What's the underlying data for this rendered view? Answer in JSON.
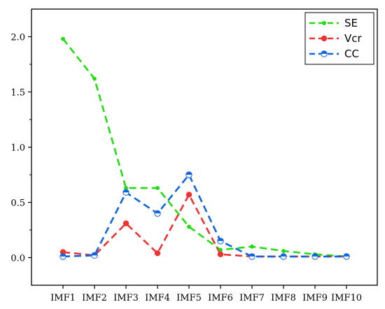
{
  "chart_data": {
    "type": "line",
    "categories": [
      "IMF1",
      "IMF2",
      "IMF3",
      "IMF4",
      "IMF5",
      "IMF6",
      "IMF7",
      "IMF8",
      "IMF9",
      "IMF10"
    ],
    "series": [
      {
        "name": "SE",
        "color": "#22dd11",
        "marker": "dot",
        "values": [
          1.98,
          1.62,
          0.63,
          0.63,
          0.28,
          0.07,
          0.1,
          0.06,
          0.03,
          0.01
        ]
      },
      {
        "name": "Vcr",
        "color": "#ee3333",
        "marker": "circle",
        "values": [
          0.05,
          0.02,
          0.31,
          0.04,
          0.57,
          0.03,
          0.01,
          0.01,
          0.01,
          0.01
        ]
      },
      {
        "name": "CC",
        "color": "#1166dd",
        "marker": "half-circle",
        "values": [
          0.01,
          0.02,
          0.59,
          0.4,
          0.75,
          0.15,
          0.01,
          0.01,
          0.01,
          0.01
        ]
      }
    ],
    "yticks": [
      "0.0",
      "0.5",
      "1.0",
      "1.5",
      "2.0"
    ],
    "ylim": [
      -0.25,
      2.25
    ],
    "grid": false,
    "legend_position": "top-right",
    "line_style": "dashed"
  }
}
